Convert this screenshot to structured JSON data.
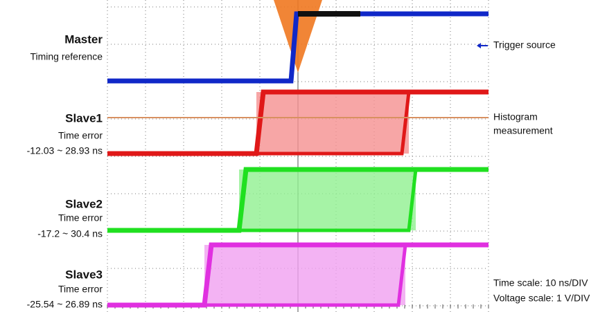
{
  "channels": [
    {
      "name": "Master",
      "description": "Timing reference"
    },
    {
      "name": "Slave1",
      "description": "Time error",
      "range": "-12.03 ~ 28.93 ns"
    },
    {
      "name": "Slave2",
      "description": "Time error",
      "range": "-17.2 ~ 30.4 ns"
    },
    {
      "name": "Slave3",
      "description": "Time error",
      "range": "-25.54 ~ 26.89 ns"
    }
  ],
  "annotations": {
    "trigger": "Trigger source",
    "histogram": [
      "Histogram",
      "measurement"
    ]
  },
  "scales": [
    "Time scale: 10 ns/DIV",
    "Voltage scale: 1 V/DIV"
  ]
}
